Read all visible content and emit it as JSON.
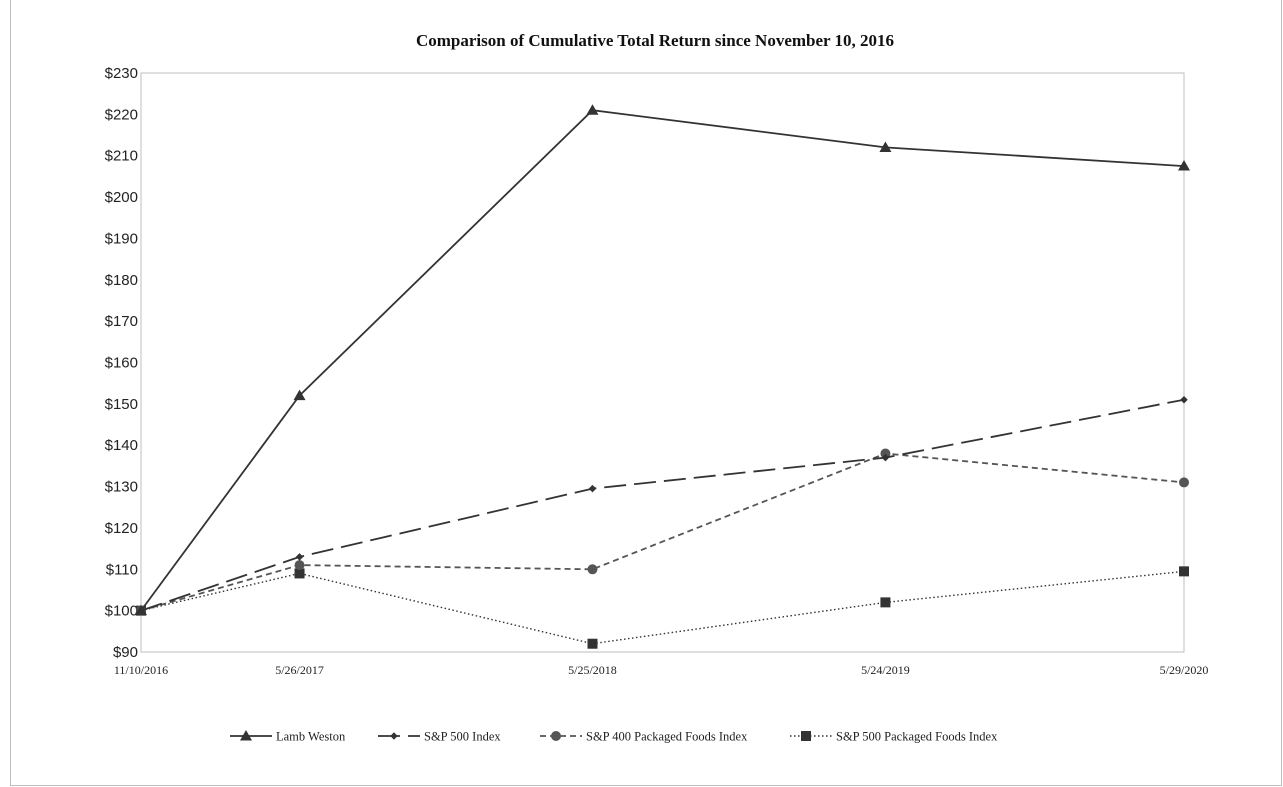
{
  "chart_data": {
    "type": "line",
    "title": "Comparison of Cumulative Total Return since November 10, 2016",
    "xlabel": "",
    "ylabel": "",
    "categories": [
      "11/10/2016",
      "5/26/2017",
      "5/25/2018",
      "5/24/2019",
      "5/29/2020"
    ],
    "x_dates": [
      "2016-11-10",
      "2017-05-26",
      "2018-05-25",
      "2019-05-24",
      "2020-05-29"
    ],
    "ylim": [
      90,
      230
    ],
    "yticks": [
      90,
      100,
      110,
      120,
      130,
      140,
      150,
      160,
      170,
      180,
      190,
      200,
      210,
      220,
      230
    ],
    "ytick_labels": [
      "$90",
      "$100",
      "$110",
      "$120",
      "$130",
      "$140",
      "$150",
      "$160",
      "$170",
      "$180",
      "$190",
      "$200",
      "$210",
      "$220",
      "$230"
    ],
    "grid": false,
    "legend_position": "bottom",
    "series": [
      {
        "name": "Lamb Weston",
        "values": [
          100,
          152,
          221,
          212,
          207.5
        ],
        "color": "#333333",
        "dash": "solid",
        "marker": "triangle"
      },
      {
        "name": "S&P 500 Index",
        "values": [
          100,
          113,
          129.5,
          137,
          151
        ],
        "color": "#333333",
        "dash": "long-dash",
        "marker": "diamond"
      },
      {
        "name": "S&P 400 Packaged Foods Index",
        "values": [
          100,
          111,
          110,
          138,
          131
        ],
        "color": "#555555",
        "dash": "short-dash",
        "marker": "circle"
      },
      {
        "name": "S&P 500 Packaged Foods Index",
        "values": [
          100,
          109,
          92,
          102,
          109.5
        ],
        "color": "#333333",
        "dash": "dotted",
        "marker": "square"
      }
    ]
  }
}
